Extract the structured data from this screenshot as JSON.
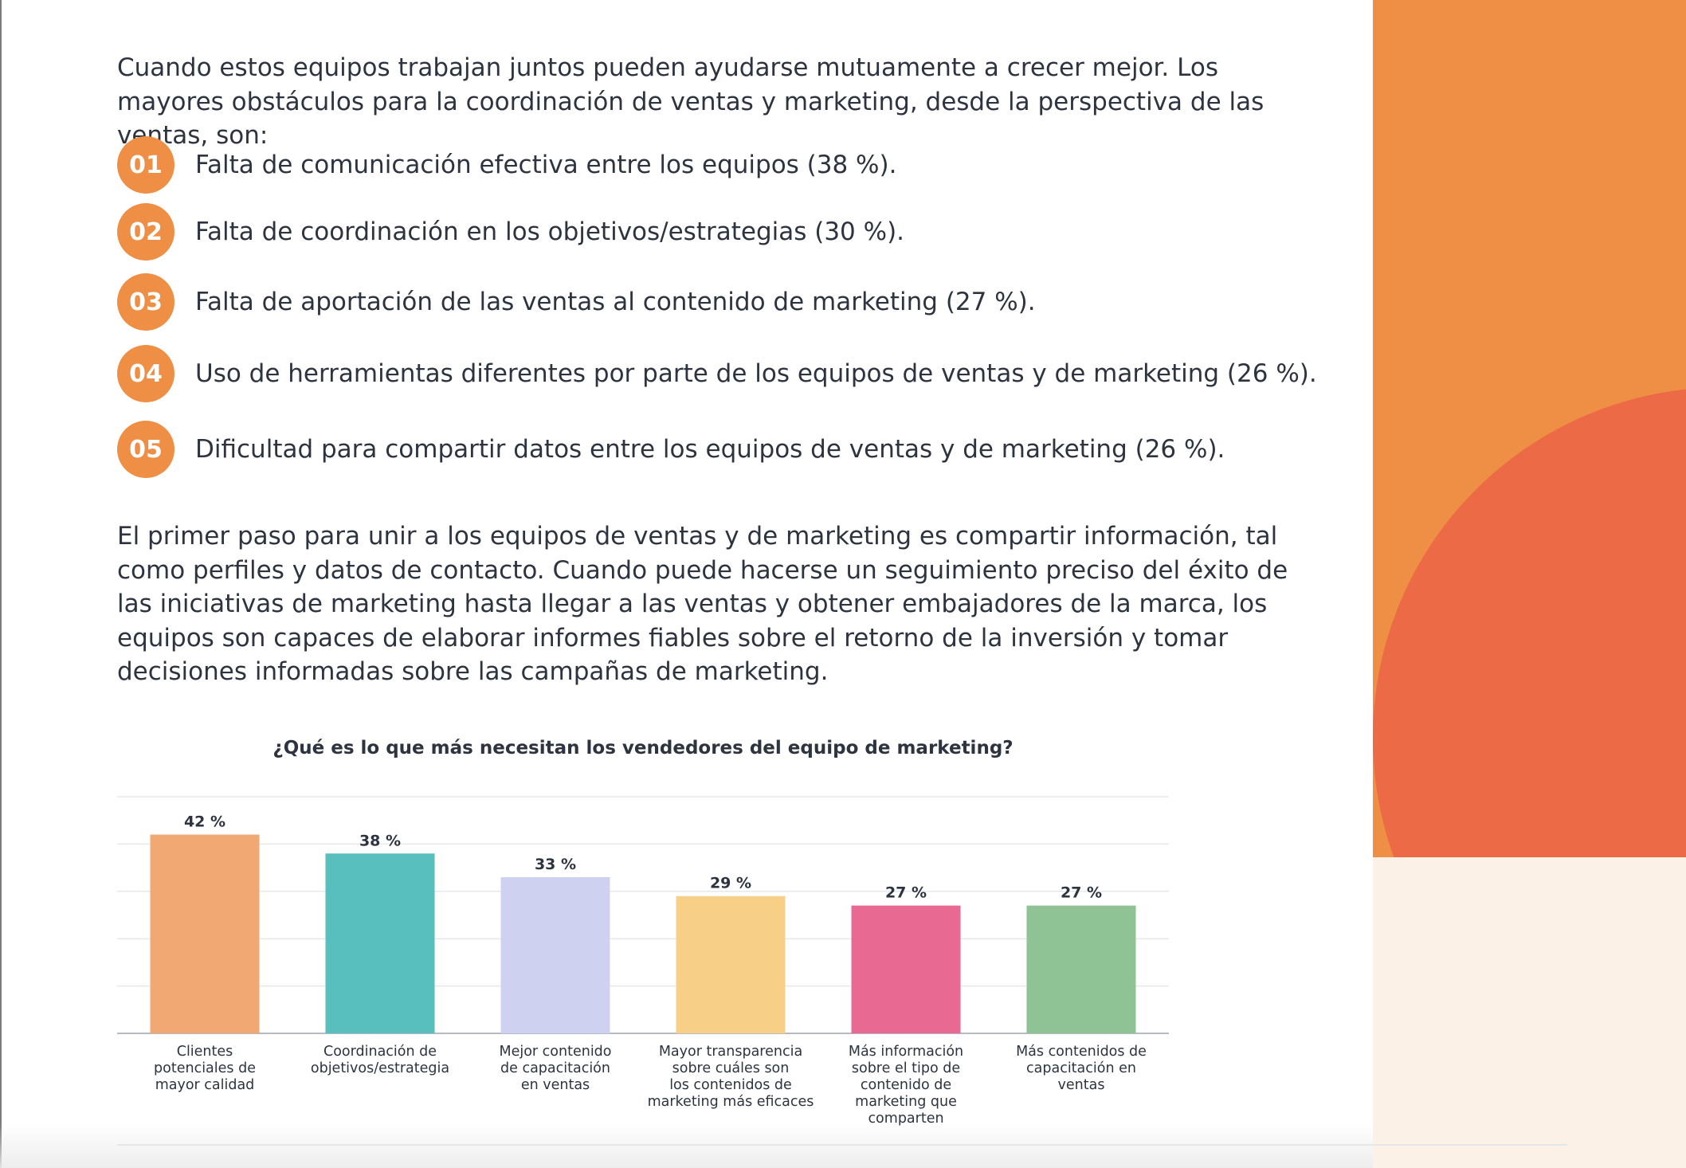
{
  "intro": "Cuando estos equipos trabajan juntos pueden ayudarse mutuamente a crecer mejor. Los mayores obstáculos para la coordinación de ventas y marketing, desde la perspectiva de las ventas, son:",
  "list": [
    {
      "num": "01",
      "text": "Falta de comunicación efectiva entre los equipos (38 %)."
    },
    {
      "num": "02",
      "text": "Falta de coordinación en los objetivos/estrategias (30 %)."
    },
    {
      "num": "03",
      "text": "Falta de aportación de las ventas al contenido de marketing (27 %)."
    },
    {
      "num": "04",
      "text": "Uso de herramientas diferentes por parte de los equipos de ventas y de marketing (26 %)."
    },
    {
      "num": "05",
      "text": "Dificultad para compartir datos entre los equipos de ventas y de marketing (26 %)."
    }
  ],
  "outro": "El primer paso para unir a los equipos de ventas y de marketing es compartir información, tal como perfiles y datos de contacto. Cuando puede hacerse un seguimiento preciso del éxito de las iniciativas de marketing hasta llegar a las ventas y obtener embajadores de la marca, los equipos son capaces de elaborar informes fiables sobre el retorno de la inversión y tomar decisiones informadas sobre las campañas de marketing.",
  "colors": {
    "accent_orange": "#ef8e45",
    "accent_red": "#ec6a45",
    "cream": "#fcf1e7"
  },
  "chart_data": {
    "type": "bar",
    "title": "¿Qué es lo que más necesitan los vendedores del equipo de marketing?",
    "categories": [
      [
        "Clientes",
        "potenciales de",
        "mayor calidad"
      ],
      [
        "Coordinación de",
        "objetivos/estrategia"
      ],
      [
        "Mejor contenido",
        "de capacitación",
        "en ventas"
      ],
      [
        "Mayor transparencia",
        "sobre cuáles son",
        "los contenidos de",
        "marketing más eficaces"
      ],
      [
        "Más información",
        "sobre el tipo de",
        "contenido de",
        "marketing que",
        "comparten"
      ],
      [
        "Más contenidos de",
        "capacitación en",
        "ventas"
      ]
    ],
    "values": [
      42,
      38,
      33,
      29,
      27,
      27
    ],
    "value_labels": [
      "42 %",
      "38 %",
      "33 %",
      "29 %",
      "27 %",
      "27 %"
    ],
    "colors": [
      "#f2a873",
      "#59bebe",
      "#cfd1f0",
      "#f8cf87",
      "#e86a93",
      "#8fc294"
    ],
    "ylim": [
      0,
      50
    ],
    "grid": true
  }
}
